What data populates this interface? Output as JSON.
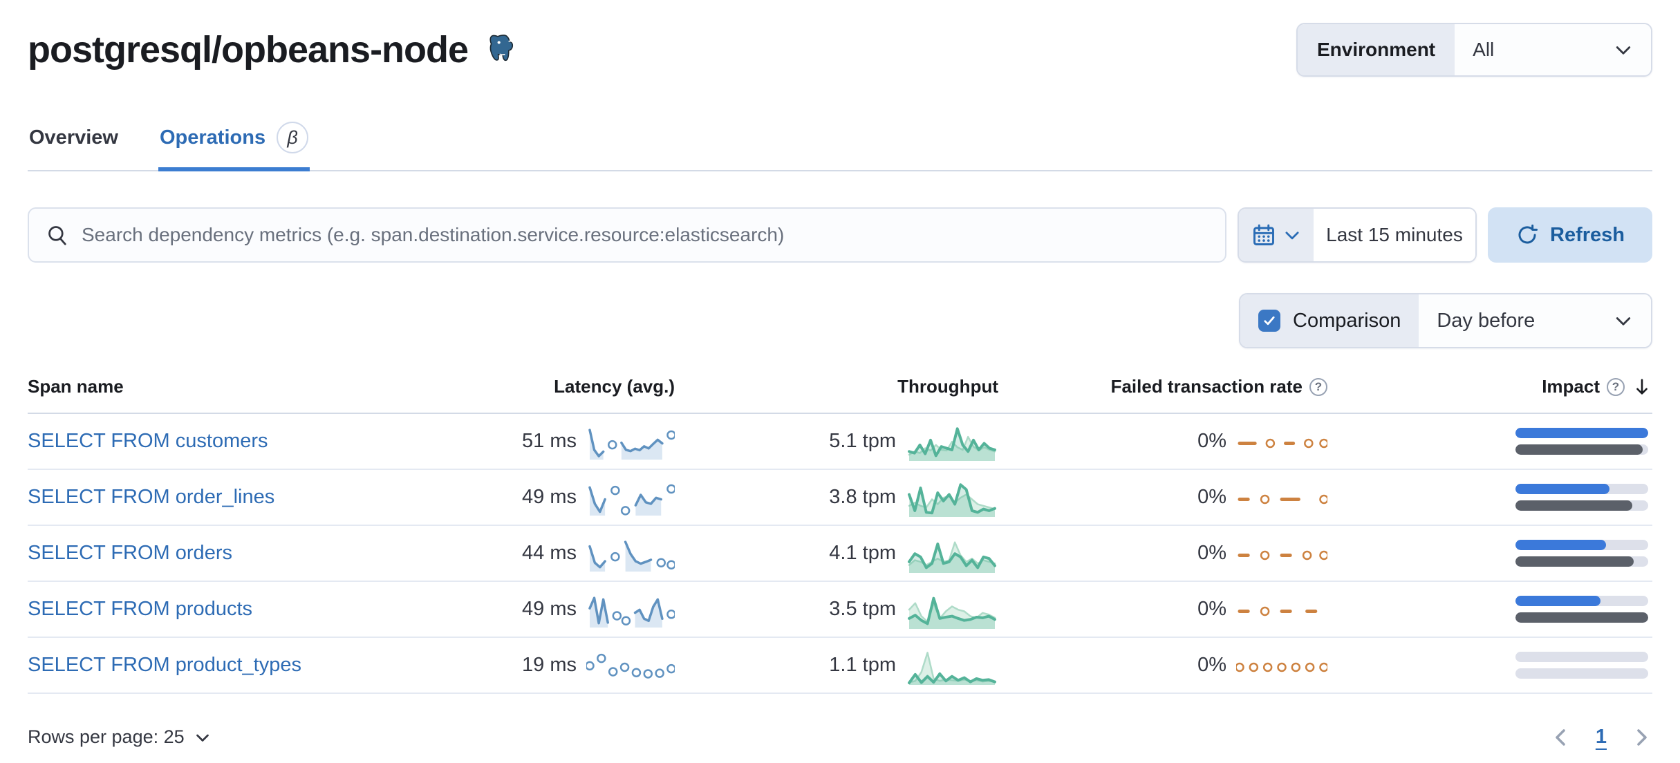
{
  "header": {
    "title": "postgresql/opbeans-node",
    "environment_label": "Environment",
    "environment_value": "All"
  },
  "tabs": [
    {
      "label": "Overview",
      "active": false
    },
    {
      "label": "Operations",
      "active": true,
      "badge": "β"
    }
  ],
  "toolbar": {
    "search_placeholder": "Search dependency metrics (e.g. span.destination.service.resource:elasticsearch)",
    "time_range": "Last 15 minutes",
    "refresh_label": "Refresh",
    "comparison_label": "Comparison",
    "comparison_checked": true,
    "comparison_value": "Day before"
  },
  "colors": {
    "primary_blue": "#2d6bb4",
    "tab_underline": "#3c7dd1",
    "refresh_bg": "#d2e2f4",
    "refresh_text": "#1b5d9e",
    "checkbox_blue": "#3b78c4",
    "impact_bar_current": "#3b79da",
    "impact_bar_previous": "#5b6069",
    "latency_line": "#6092C0",
    "throughput_line": "#54B399",
    "failed_line": "#cd8240"
  },
  "spark_styles": {
    "latency": {
      "color": "#6092C0",
      "fill": "#dbe7f3",
      "width": 3.5,
      "dots": true
    },
    "throughput_prev": {
      "color": "#aedbc8",
      "fill": "#ddf0e7",
      "width": 2.5,
      "dots": false
    },
    "throughput": {
      "color": "#54B399",
      "fill": "rgba(84,179,153,0.25)",
      "width": 4,
      "dots": false
    },
    "failed": {
      "color": "#cd8240",
      "width": 5,
      "dots": true
    }
  },
  "table": {
    "columns": {
      "name": "Span name",
      "latency": "Latency (avg.)",
      "throughput": "Throughput",
      "failed": "Failed transaction rate",
      "impact": "Impact"
    },
    "sort_column": "Impact",
    "rows": [
      {
        "name": "SELECT FROM customers",
        "latency": "51 ms",
        "throughput": "5.1 tpm",
        "failed_rate": "0%",
        "impact_current": 100,
        "impact_previous": 96,
        "latency_spark": {
          "series": [
            {
              "style": "latency",
              "values": [
                0.95,
                0.28,
                0.07,
                0.22,
                null,
                0.45,
                null,
                0.52,
                0.28,
                0.24,
                0.32,
                0.27,
                0.4,
                0.33,
                0.48,
                0.62,
                0.5,
                null,
                0.78
              ]
            }
          ]
        },
        "throughput_spark": {
          "series": [
            {
              "style": "throughput_prev",
              "values": [
                0.15,
                0.25,
                0.2,
                0.35,
                0.28,
                0.45,
                0.3,
                0.28,
                0.55,
                0.38,
                0.3,
                0.7,
                0.4,
                0.28,
                0.38,
                0.3,
                0.25
              ]
            },
            {
              "style": "throughput",
              "values": [
                0.25,
                0.2,
                0.45,
                0.18,
                0.6,
                0.12,
                0.4,
                0.35,
                0.3,
                0.95,
                0.45,
                0.25,
                0.6,
                0.3,
                0.5,
                0.35,
                0.3
              ]
            }
          ]
        },
        "failed_spark": {
          "series": [
            {
              "style": "failed",
              "values": [
                0.5,
                0.5,
                0.5,
                null,
                0.5,
                null,
                0.5,
                0.5,
                null,
                0.5,
                null,
                0.5
              ]
            }
          ]
        }
      },
      {
        "name": "SELECT FROM order_lines",
        "latency": "49 ms",
        "throughput": "3.8 tpm",
        "failed_rate": "0%",
        "impact_current": 71,
        "impact_previous": 88,
        "latency_spark": {
          "series": [
            {
              "style": "latency",
              "values": [
                0.9,
                0.35,
                0.08,
                0.5,
                null,
                0.8,
                null,
                0.12,
                null,
                0.3,
                0.65,
                0.4,
                0.35,
                0.55,
                0.5,
                null,
                0.85
              ]
            }
          ]
        },
        "throughput_spark": {
          "series": [
            {
              "style": "throughput_prev",
              "values": [
                0.3,
                0.4,
                0.3,
                0.25,
                0.5,
                0.35,
                0.55,
                0.6,
                0.4,
                0.55,
                0.65,
                0.5,
                0.35,
                0.3,
                0.25,
                0.2
              ]
            },
            {
              "style": "throughput",
              "values": [
                0.65,
                0.15,
                0.85,
                0.1,
                0.08,
                0.7,
                0.45,
                0.65,
                0.35,
                0.95,
                0.8,
                0.15,
                0.1,
                0.2,
                0.15,
                0.22
              ]
            }
          ]
        },
        "failed_spark": {
          "series": [
            {
              "style": "failed",
              "values": [
                0.5,
                0.5,
                null,
                0.5,
                null,
                0.5,
                0.5,
                0.5,
                null,
                null,
                0.5
              ]
            }
          ]
        }
      },
      {
        "name": "SELECT FROM orders",
        "latency": "44 ms",
        "throughput": "4.1 tpm",
        "failed_rate": "0%",
        "impact_current": 68,
        "impact_previous": 89,
        "latency_spark": {
          "series": [
            {
              "style": "latency",
              "values": [
                0.8,
                0.25,
                0.1,
                0.3,
                null,
                0.45,
                null,
                0.95,
                0.55,
                0.3,
                0.22,
                0.28,
                0.35,
                null,
                0.25,
                null,
                0.18
              ]
            }
          ]
        },
        "throughput_spark": {
          "series": [
            {
              "style": "throughput_prev",
              "values": [
                0.2,
                0.35,
                0.3,
                0.2,
                0.3,
                0.4,
                0.3,
                0.35,
                0.9,
                0.5,
                0.3,
                0.4,
                0.25,
                0.35,
                0.3,
                0.25
              ]
            },
            {
              "style": "throughput",
              "values": [
                0.3,
                0.55,
                0.45,
                0.12,
                0.25,
                0.85,
                0.25,
                0.3,
                0.55,
                0.45,
                0.18,
                0.35,
                0.12,
                0.45,
                0.4,
                0.18
              ]
            }
          ]
        },
        "failed_spark": {
          "series": [
            {
              "style": "failed",
              "values": [
                0.5,
                0.5,
                null,
                0.5,
                null,
                0.5,
                0.5,
                null,
                0.5,
                null,
                0.5
              ]
            }
          ]
        }
      },
      {
        "name": "SELECT FROM products",
        "latency": "49 ms",
        "throughput": "3.5 tpm",
        "failed_rate": "0%",
        "impact_current": 64,
        "impact_previous": 100,
        "latency_spark": {
          "series": [
            {
              "style": "latency",
              "values": [
                0.6,
                0.95,
                0.1,
                0.9,
                0.12,
                null,
                0.35,
                null,
                0.18,
                null,
                0.45,
                0.55,
                0.25,
                0.18,
                0.65,
                0.9,
                0.25,
                null,
                0.4
              ]
            }
          ]
        },
        "throughput_spark": {
          "series": [
            {
              "style": "throughput_prev",
              "values": [
                0.55,
                0.75,
                0.35,
                0.18,
                0.75,
                0.28,
                0.5,
                0.65,
                0.55,
                0.5,
                0.35,
                0.3,
                0.45,
                0.4,
                0.3
              ]
            },
            {
              "style": "throughput",
              "values": [
                0.28,
                0.38,
                0.22,
                0.12,
                0.9,
                0.28,
                0.32,
                0.35,
                0.28,
                0.22,
                0.25,
                0.32,
                0.3,
                0.35,
                0.25
              ]
            }
          ]
        },
        "failed_spark": {
          "series": [
            {
              "style": "failed",
              "values": [
                0.5,
                0.5,
                null,
                0.5,
                null,
                0.5,
                0.5,
                null,
                0.5,
                0.5,
                null
              ]
            }
          ]
        }
      },
      {
        "name": "SELECT FROM product_types",
        "latency": "19 ms",
        "throughput": "1.1 tpm",
        "failed_rate": "0%",
        "impact_current": 0,
        "impact_previous": 0,
        "latency_spark": {
          "series": [
            {
              "style": "latency",
              "values": [
                0.55,
                null,
                0.8,
                null,
                0.35,
                null,
                0.5,
                null,
                0.32,
                null,
                0.28,
                null,
                0.3,
                null,
                0.45
              ]
            }
          ]
        },
        "throughput_spark": {
          "series": [
            {
              "style": "throughput_prev",
              "values": [
                0.03,
                0.08,
                0.35,
                0.95,
                0.15,
                0.08,
                0.12,
                0.1,
                0.08,
                0.12,
                0.08,
                0.1,
                0.06,
                0.08,
                0.05
              ]
            },
            {
              "style": "throughput",
              "values": [
                0.02,
                0.28,
                0.03,
                0.22,
                0.04,
                0.3,
                0.08,
                0.22,
                0.1,
                0.18,
                0.05,
                0.15,
                0.1,
                0.12,
                0.05
              ]
            }
          ]
        },
        "failed_spark": {
          "series": [
            {
              "style": "failed",
              "values": [
                0.5,
                null,
                0.5,
                null,
                0.5,
                null,
                0.5,
                null,
                0.5,
                null,
                0.5,
                null,
                0.5
              ]
            }
          ]
        }
      }
    ]
  },
  "footer": {
    "rows_per_page": "Rows per page: 25",
    "page": "1"
  }
}
